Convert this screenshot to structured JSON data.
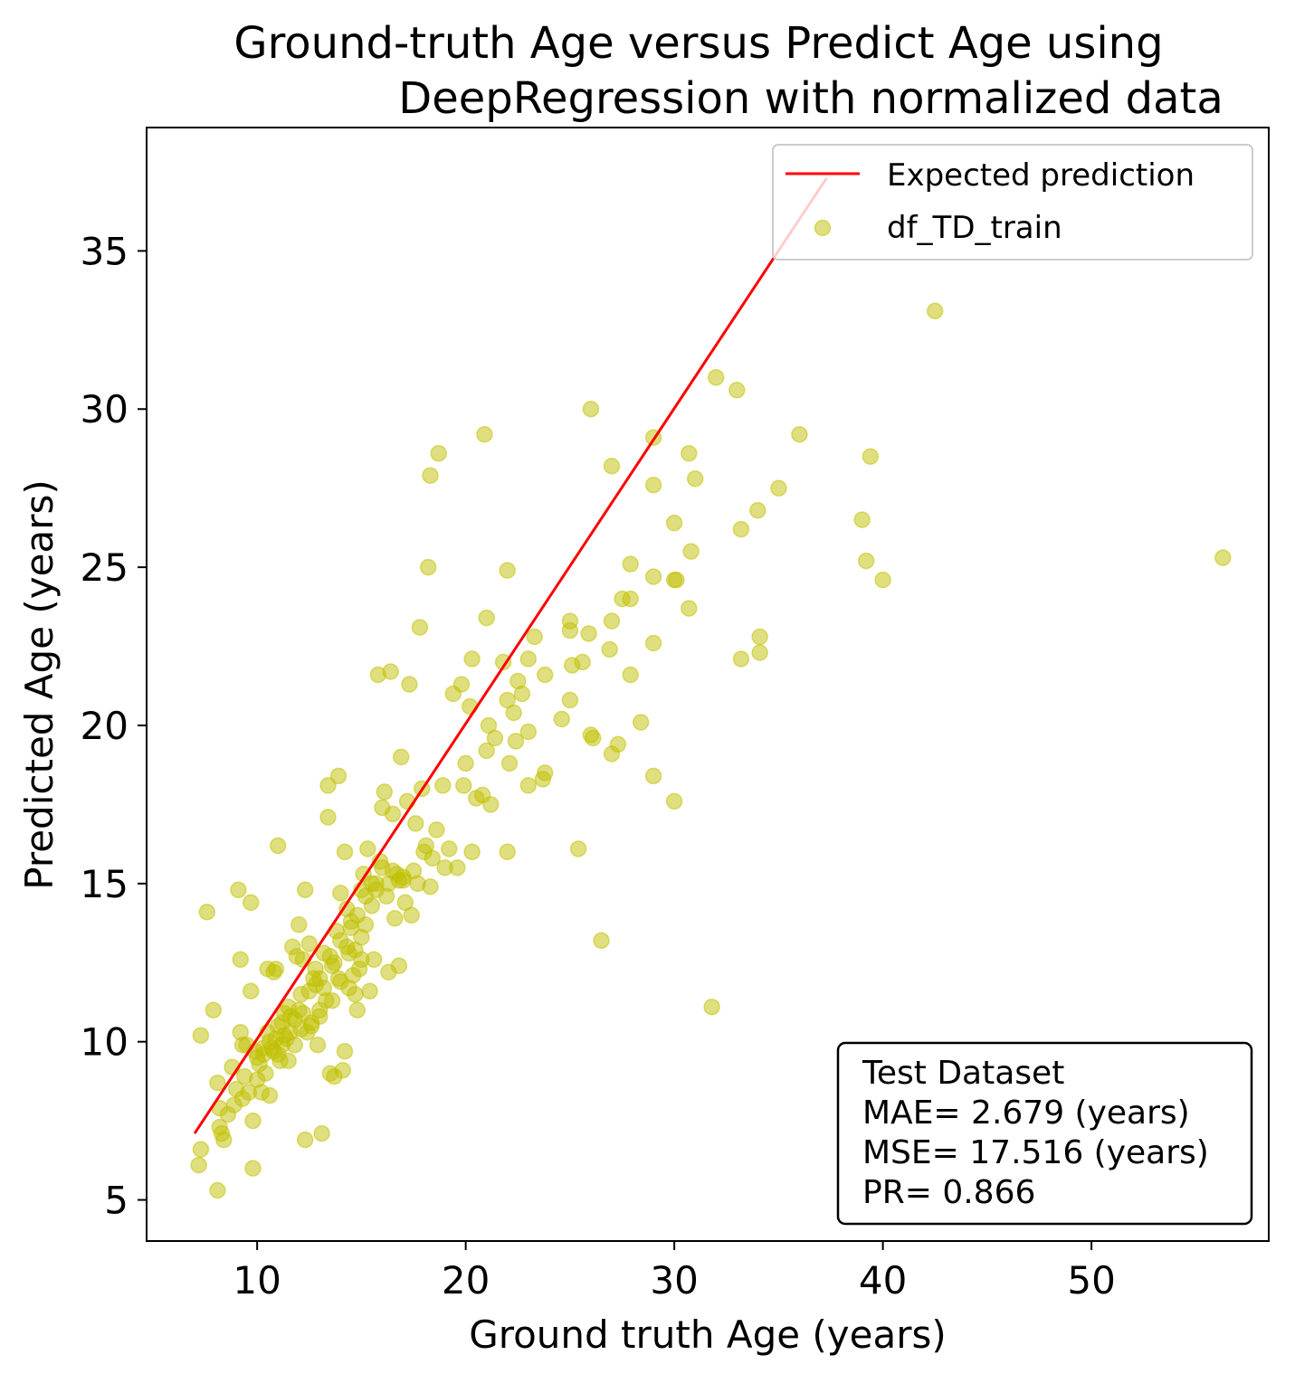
{
  "chart_data": {
    "type": "scatter",
    "title_lines": [
      "Ground-truth Age versus Predict Age using",
      "DeepRegression  with normalized data"
    ],
    "xlabel": "Ground truth Age (years)",
    "ylabel": "Predicted Age (years)",
    "xlim": [
      4.7,
      58.5
    ],
    "ylim": [
      3.7,
      38.9
    ],
    "xticks": [
      10,
      20,
      30,
      40,
      50
    ],
    "yticks": [
      5,
      10,
      15,
      20,
      25,
      30,
      35
    ],
    "grid": false,
    "legend_position": "top-right",
    "legend": {
      "line_label": "Expected prediction",
      "scatter_label": "df_TD_train"
    },
    "colors": {
      "line": "#ff0000",
      "points": "#bfbf00"
    },
    "expected_line": {
      "x": [
        7.0,
        37.3
      ],
      "y": [
        7.1,
        37.3
      ]
    },
    "stats_box": {
      "position": "bottom-right",
      "lines": [
        "Test Dataset",
        "MAE= 2.679 (years)",
        "MSE= 17.516 (years)",
        "PR= 0.866"
      ]
    },
    "series": [
      {
        "name": "df_TD_train",
        "points": [
          [
            7.2,
            6.1
          ],
          [
            7.3,
            6.6
          ],
          [
            7.3,
            10.2
          ],
          [
            7.6,
            14.1
          ],
          [
            7.9,
            11.0
          ],
          [
            8.1,
            5.3
          ],
          [
            8.1,
            8.7
          ],
          [
            8.2,
            7.3
          ],
          [
            8.2,
            7.9
          ],
          [
            8.3,
            7.1
          ],
          [
            8.4,
            6.9
          ],
          [
            8.6,
            7.7
          ],
          [
            8.8,
            9.2
          ],
          [
            8.9,
            8.0
          ],
          [
            9.0,
            8.5
          ],
          [
            9.1,
            14.8
          ],
          [
            9.2,
            12.6
          ],
          [
            9.2,
            10.3
          ],
          [
            9.3,
            8.2
          ],
          [
            9.3,
            9.9
          ],
          [
            9.4,
            8.9
          ],
          [
            9.6,
            8.4
          ],
          [
            9.7,
            11.6
          ],
          [
            9.7,
            14.4
          ],
          [
            9.8,
            7.5
          ],
          [
            9.8,
            6.0
          ],
          [
            9.9,
            9.7
          ],
          [
            10.0,
            8.8
          ],
          [
            10.1,
            9.3
          ],
          [
            10.2,
            8.4
          ],
          [
            10.3,
            9.6
          ],
          [
            10.4,
            9.0
          ],
          [
            10.5,
            10.3
          ],
          [
            10.5,
            12.3
          ],
          [
            10.6,
            8.3
          ],
          [
            10.7,
            9.8
          ],
          [
            10.8,
            12.2
          ],
          [
            10.9,
            12.3
          ],
          [
            10.9,
            10.1
          ],
          [
            11.0,
            16.2
          ],
          [
            11.0,
            9.6
          ],
          [
            11.1,
            9.4
          ],
          [
            11.2,
            10.6
          ],
          [
            11.3,
            10.2
          ],
          [
            11.4,
            10.1
          ],
          [
            11.5,
            9.4
          ],
          [
            11.6,
            10.8
          ],
          [
            11.7,
            13.0
          ],
          [
            11.8,
            9.9
          ],
          [
            11.9,
            12.7
          ],
          [
            12.0,
            13.7
          ],
          [
            12.1,
            11.5
          ],
          [
            12.2,
            12.6
          ],
          [
            12.3,
            14.8
          ],
          [
            12.3,
            6.9
          ],
          [
            12.4,
            10.3
          ],
          [
            12.5,
            13.1
          ],
          [
            12.6,
            10.5
          ],
          [
            12.7,
            12.0
          ],
          [
            12.8,
            11.8
          ],
          [
            12.9,
            9.9
          ],
          [
            13.0,
            11.0
          ],
          [
            13.1,
            7.1
          ],
          [
            13.2,
            12.8
          ],
          [
            13.3,
            11.3
          ],
          [
            13.4,
            18.1
          ],
          [
            13.4,
            17.1
          ],
          [
            13.5,
            9.0
          ],
          [
            13.6,
            12.4
          ],
          [
            13.7,
            8.9
          ],
          [
            13.8,
            13.5
          ],
          [
            13.9,
            18.4
          ],
          [
            14.0,
            11.9
          ],
          [
            14.0,
            14.7
          ],
          [
            14.1,
            9.1
          ],
          [
            14.2,
            9.7
          ],
          [
            14.2,
            16.0
          ],
          [
            14.3,
            14.2
          ],
          [
            14.4,
            12.8
          ],
          [
            14.5,
            13.8
          ],
          [
            14.6,
            12.1
          ],
          [
            14.7,
            11.5
          ],
          [
            14.8,
            11.0
          ],
          [
            14.9,
            12.3
          ],
          [
            15.0,
            14.8
          ],
          [
            15.1,
            15.3
          ],
          [
            15.2,
            13.7
          ],
          [
            15.3,
            16.1
          ],
          [
            15.4,
            11.6
          ],
          [
            15.5,
            14.3
          ],
          [
            15.6,
            12.6
          ],
          [
            15.7,
            15.0
          ],
          [
            15.8,
            21.6
          ],
          [
            15.9,
            15.7
          ],
          [
            16.0,
            17.4
          ],
          [
            16.1,
            17.9
          ],
          [
            16.2,
            14.6
          ],
          [
            16.3,
            12.2
          ],
          [
            16.4,
            21.7
          ],
          [
            16.5,
            17.2
          ],
          [
            16.6,
            13.9
          ],
          [
            16.7,
            15.3
          ],
          [
            16.8,
            12.4
          ],
          [
            16.9,
            19.0
          ],
          [
            17.0,
            15.1
          ],
          [
            17.1,
            14.4
          ],
          [
            17.2,
            17.6
          ],
          [
            17.3,
            21.3
          ],
          [
            17.4,
            14.0
          ],
          [
            17.5,
            15.4
          ],
          [
            17.6,
            16.9
          ],
          [
            17.7,
            15.0
          ],
          [
            17.8,
            23.1
          ],
          [
            17.9,
            18.0
          ],
          [
            18.0,
            16.0
          ],
          [
            18.1,
            16.2
          ],
          [
            18.2,
            25.0
          ],
          [
            18.3,
            27.9
          ],
          [
            18.3,
            14.9
          ],
          [
            18.4,
            15.8
          ],
          [
            18.6,
            16.7
          ],
          [
            18.7,
            28.6
          ],
          [
            18.9,
            18.1
          ],
          [
            19.0,
            15.5
          ],
          [
            19.2,
            16.1
          ],
          [
            19.4,
            21.0
          ],
          [
            19.6,
            15.5
          ],
          [
            19.8,
            21.3
          ],
          [
            19.9,
            18.1
          ],
          [
            20.0,
            18.8
          ],
          [
            20.2,
            20.6
          ],
          [
            20.3,
            22.1
          ],
          [
            20.3,
            16.0
          ],
          [
            20.5,
            17.7
          ],
          [
            20.8,
            17.8
          ],
          [
            20.9,
            29.2
          ],
          [
            21.0,
            23.4
          ],
          [
            21.0,
            19.2
          ],
          [
            21.1,
            20.0
          ],
          [
            21.2,
            17.5
          ],
          [
            21.4,
            19.6
          ],
          [
            21.8,
            22.0
          ],
          [
            22.0,
            24.9
          ],
          [
            22.0,
            20.8
          ],
          [
            22.0,
            16.0
          ],
          [
            22.1,
            18.8
          ],
          [
            22.3,
            20.4
          ],
          [
            22.4,
            19.5
          ],
          [
            22.5,
            21.4
          ],
          [
            22.7,
            21.0
          ],
          [
            23.0,
            22.1
          ],
          [
            23.0,
            18.1
          ],
          [
            23.0,
            19.8
          ],
          [
            23.3,
            22.8
          ],
          [
            23.7,
            18.3
          ],
          [
            23.8,
            21.6
          ],
          [
            23.8,
            18.5
          ],
          [
            24.6,
            20.2
          ],
          [
            25.0,
            23.3
          ],
          [
            25.0,
            23.0
          ],
          [
            25.0,
            20.8
          ],
          [
            25.1,
            21.9
          ],
          [
            25.4,
            16.1
          ],
          [
            25.6,
            22.0
          ],
          [
            25.9,
            22.9
          ],
          [
            26.0,
            19.7
          ],
          [
            26.0,
            30.0
          ],
          [
            26.1,
            19.6
          ],
          [
            26.5,
            13.2
          ],
          [
            26.9,
            22.4
          ],
          [
            27.0,
            28.2
          ],
          [
            27.0,
            23.3
          ],
          [
            27.0,
            19.1
          ],
          [
            27.3,
            19.4
          ],
          [
            27.5,
            24.0
          ],
          [
            27.9,
            24.0
          ],
          [
            27.9,
            25.1
          ],
          [
            27.9,
            21.6
          ],
          [
            28.4,
            20.1
          ],
          [
            29.0,
            29.1
          ],
          [
            29.0,
            27.6
          ],
          [
            29.0,
            24.7
          ],
          [
            29.0,
            22.6
          ],
          [
            29.0,
            18.4
          ],
          [
            30.0,
            26.4
          ],
          [
            30.0,
            24.6
          ],
          [
            30.0,
            17.6
          ],
          [
            30.1,
            24.6
          ],
          [
            30.7,
            23.7
          ],
          [
            30.7,
            28.6
          ],
          [
            30.8,
            25.5
          ],
          [
            31.0,
            27.8
          ],
          [
            31.8,
            11.1
          ],
          [
            32.0,
            31.0
          ],
          [
            33.0,
            30.6
          ],
          [
            33.2,
            26.2
          ],
          [
            33.2,
            22.1
          ],
          [
            34.0,
            26.8
          ],
          [
            34.1,
            22.8
          ],
          [
            34.1,
            22.3
          ],
          [
            35.0,
            27.5
          ],
          [
            36.0,
            29.2
          ],
          [
            39.0,
            26.5
          ],
          [
            39.2,
            25.2
          ],
          [
            39.4,
            28.5
          ],
          [
            40.0,
            24.6
          ],
          [
            42.5,
            33.1
          ],
          [
            56.3,
            25.3
          ],
          [
            9.5,
            9.9
          ],
          [
            10.0,
            9.5
          ],
          [
            10.3,
            9.8
          ],
          [
            10.6,
            10.0
          ],
          [
            10.8,
            9.7
          ],
          [
            11.0,
            10.5
          ],
          [
            11.3,
            10.9
          ],
          [
            11.5,
            11.1
          ],
          [
            11.8,
            10.7
          ],
          [
            12.0,
            11.0
          ],
          [
            12.2,
            10.9
          ],
          [
            12.5,
            11.6
          ],
          [
            12.8,
            12.3
          ],
          [
            13.0,
            12.0
          ],
          [
            13.2,
            11.7
          ],
          [
            13.5,
            12.7
          ],
          [
            13.7,
            12.5
          ],
          [
            14.0,
            13.2
          ],
          [
            14.3,
            13.0
          ],
          [
            14.5,
            13.6
          ],
          [
            14.8,
            14.0
          ],
          [
            15.0,
            13.3
          ],
          [
            15.2,
            14.6
          ],
          [
            15.5,
            15.0
          ],
          [
            15.7,
            14.8
          ],
          [
            16.0,
            15.5
          ],
          [
            16.3,
            15.0
          ],
          [
            16.5,
            15.4
          ],
          [
            16.8,
            15.1
          ],
          [
            17.0,
            15.2
          ],
          [
            14.7,
            12.9
          ],
          [
            15.0,
            12.6
          ],
          [
            14.4,
            11.7
          ],
          [
            13.9,
            12.0
          ],
          [
            13.6,
            11.3
          ],
          [
            13.0,
            10.8
          ],
          [
            12.6,
            10.6
          ],
          [
            12.1,
            10.4
          ],
          [
            11.6,
            10.3
          ],
          [
            11.2,
            9.9
          ]
        ]
      }
    ]
  }
}
